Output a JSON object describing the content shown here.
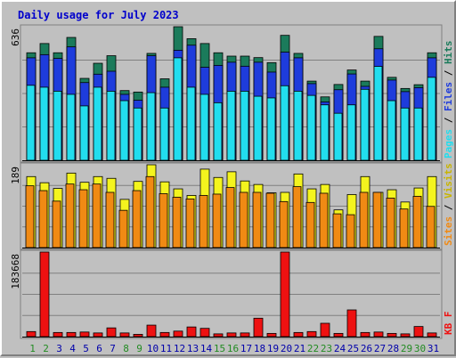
{
  "title": "Daily usage for July 2023",
  "colors": {
    "background": "#c0c0c0",
    "hits": "#1b7b5b",
    "files": "#1e3cdc",
    "pages": "#22ddee",
    "visits": "#f4f41e",
    "sites": "#f08a14",
    "kbytes": "#ee1111",
    "title": "#0000cc",
    "day_weekday": "#0000aa",
    "day_weekend": "#228b22"
  },
  "chart_data": [
    {
      "type": "bar",
      "panel": "top",
      "ymax_label": "636",
      "ymax": 636,
      "right_label": [
        "Pages",
        " / ",
        "Files",
        " / ",
        "Hits"
      ],
      "grid": true,
      "categories": [
        "1",
        "2",
        "3",
        "4",
        "5",
        "6",
        "7",
        "8",
        "9",
        "10",
        "11",
        "12",
        "13",
        "14",
        "15",
        "16",
        "17",
        "18",
        "19",
        "20",
        "21",
        "22",
        "23",
        "24",
        "25",
        "26",
        "27",
        "28",
        "29",
        "30",
        "31"
      ],
      "series": [
        {
          "name": "Hits",
          "values": [
            512,
            556,
            512,
            585,
            390,
            462,
            498,
            332,
            325,
            509,
            388,
            636,
            579,
            556,
            512,
            496,
            496,
            489,
            465,
            595,
            509,
            377,
            302,
            361,
            430,
            377,
            590,
            395,
            342,
            360,
            512
          ]
        },
        {
          "name": "Files",
          "values": [
            488,
            503,
            485,
            540,
            370,
            410,
            424,
            314,
            286,
            498,
            348,
            524,
            548,
            443,
            452,
            467,
            448,
            467,
            420,
            515,
            488,
            365,
            278,
            336,
            411,
            352,
            531,
            382,
            327,
            346,
            488
          ]
        },
        {
          "name": "Pages",
          "values": [
            357,
            348,
            329,
            314,
            259,
            348,
            329,
            284,
            249,
            322,
            249,
            488,
            348,
            314,
            274,
            329,
            329,
            305,
            297,
            355,
            329,
            309,
            264,
            224,
            264,
            338,
            447,
            284,
            249,
            249,
            395
          ]
        }
      ]
    },
    {
      "type": "bar",
      "panel": "middle",
      "ymax_label": "189",
      "ymax": 189,
      "right_label": [
        "Sites",
        " / ",
        "Visits"
      ],
      "grid": true,
      "categories": [
        "1",
        "2",
        "3",
        "4",
        "5",
        "6",
        "7",
        "8",
        "9",
        "10",
        "11",
        "12",
        "13",
        "14",
        "15",
        "16",
        "17",
        "18",
        "19",
        "20",
        "21",
        "22",
        "23",
        "24",
        "25",
        "26",
        "27",
        "28",
        "29",
        "30",
        "31"
      ],
      "series": [
        {
          "name": "Visits",
          "values": [
            162,
            148,
            135,
            170,
            149,
            162,
            158,
            110,
            151,
            189,
            150,
            134,
            119,
            179,
            160,
            173,
            152,
            144,
            125,
            126,
            168,
            134,
            144,
            86,
            121,
            162,
            126,
            132,
            104,
            136,
            162
          ]
        },
        {
          "name": "Sites",
          "values": [
            141,
            130,
            106,
            145,
            132,
            145,
            126,
            85,
            130,
            162,
            123,
            115,
            111,
            119,
            122,
            137,
            126,
            126,
            124,
            105,
            139,
            103,
            124,
            77,
            75,
            126,
            126,
            113,
            88,
            117,
            94
          ]
        }
      ]
    },
    {
      "type": "bar",
      "panel": "bottom",
      "ymax_label": "183668",
      "ymax": 183668,
      "right_label": [
        "KB F"
      ],
      "grid": true,
      "categories": [
        "1",
        "2",
        "3",
        "4",
        "5",
        "6",
        "7",
        "8",
        "9",
        "10",
        "11",
        "12",
        "13",
        "14",
        "15",
        "16",
        "17",
        "18",
        "19",
        "20",
        "21",
        "22",
        "23",
        "24",
        "25",
        "26",
        "27",
        "28",
        "29",
        "30",
        "31"
      ],
      "series": [
        {
          "name": "KB F",
          "values": [
            11000,
            183668,
            9000,
            9000,
            10000,
            8000,
            19000,
            8000,
            5000,
            25000,
            9000,
            12000,
            21000,
            18000,
            6000,
            8000,
            8000,
            40000,
            7000,
            183668,
            9000,
            11000,
            29000,
            7000,
            58000,
            9000,
            10000,
            7000,
            6000,
            22000,
            8000
          ]
        }
      ]
    }
  ],
  "day_labels": {
    "days": [
      "1",
      "2",
      "3",
      "4",
      "5",
      "6",
      "7",
      "8",
      "9",
      "10",
      "11",
      "12",
      "13",
      "14",
      "15",
      "16",
      "17",
      "18",
      "19",
      "20",
      "21",
      "22",
      "23",
      "24",
      "25",
      "26",
      "27",
      "28",
      "29",
      "30",
      "31"
    ],
    "weekend": [
      1,
      2,
      8,
      9,
      15,
      16,
      22,
      23,
      29,
      30
    ]
  }
}
